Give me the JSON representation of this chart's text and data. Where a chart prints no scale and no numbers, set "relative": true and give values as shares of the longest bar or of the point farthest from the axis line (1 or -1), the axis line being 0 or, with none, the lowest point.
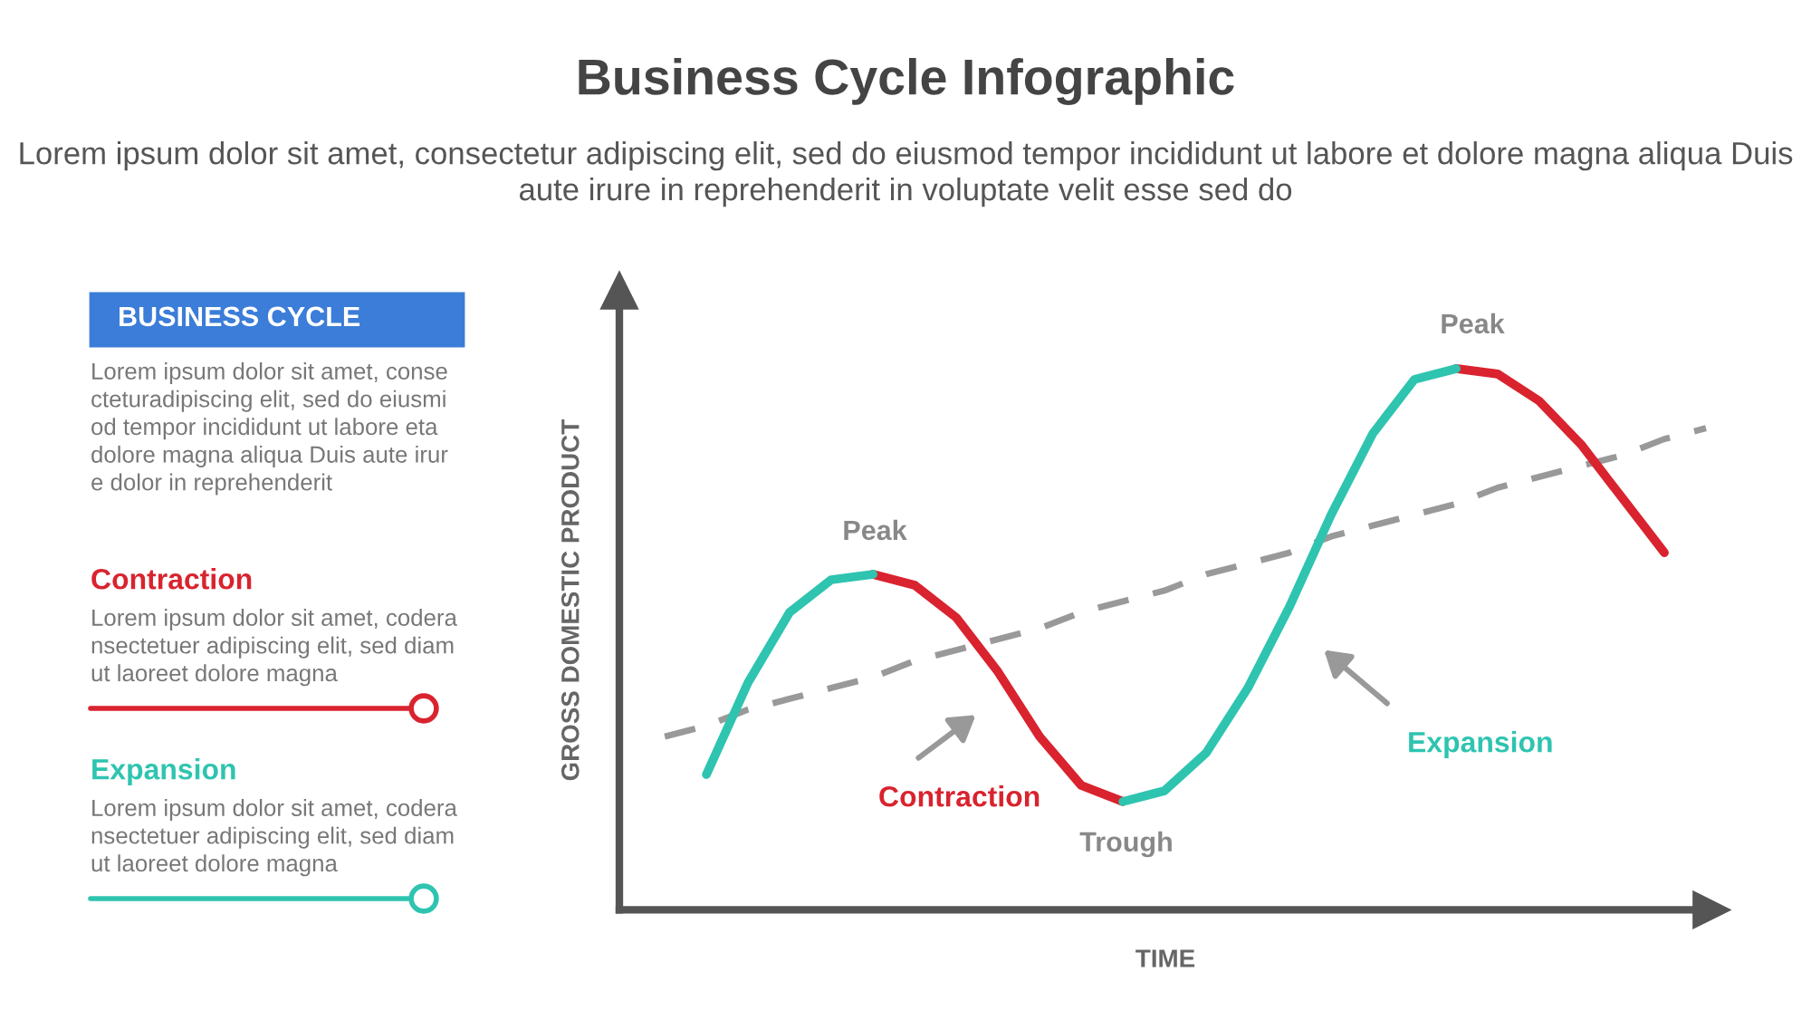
{
  "chart_data": {
    "type": "line",
    "relative": true,
    "title": "Business Cycle Infographic",
    "subtitle": "Lorem ipsum dolor sit amet, consectetur adipiscing elit, sed do eiusmod tempor incididunt ut labore et dolore magna aliqua Duis aute irure in reprehenderit in voluptate velit esse sed do",
    "xlabel": "TIME",
    "ylabel": "GROSS DOMESTIC PRODUCT",
    "categories": [
      null,
      null,
      null,
      null,
      null,
      null,
      null,
      null,
      null,
      null,
      null,
      null,
      null,
      null,
      null,
      null,
      null,
      null,
      null,
      null,
      null,
      null,
      null,
      null,
      null,
      null
    ],
    "series": [
      {
        "name": "Contraction",
        "color": "#d9232e",
        "values": [
          null,
          null,
          null,
          null,
          null,
          0.62,
          0.6,
          0.54,
          0.44,
          0.32,
          0.23,
          0.2,
          null,
          null,
          null,
          null,
          null,
          null,
          null,
          1.0,
          0.99,
          0.94,
          0.86,
          0.76,
          0.66,
          null
        ]
      },
      {
        "name": "Expansion",
        "color": "#2ec4b0",
        "values": [
          null,
          0.25,
          0.42,
          0.55,
          0.61,
          0.62,
          null,
          null,
          null,
          null,
          null,
          0.2,
          0.22,
          0.29,
          0.41,
          0.56,
          0.73,
          0.88,
          0.98,
          1.0,
          null,
          null,
          null,
          null,
          null,
          null
        ]
      },
      {
        "color": "#999999",
        "line_style": "dashed",
        "values": [
          0.32,
          0.34,
          0.37,
          0.39,
          0.41,
          0.43,
          0.46,
          0.48,
          0.5,
          0.52,
          0.55,
          0.57,
          0.59,
          0.62,
          0.64,
          0.66,
          0.69,
          0.71,
          0.73,
          0.75,
          0.78,
          0.8,
          0.82,
          0.84,
          0.87,
          0.89
        ]
      }
    ],
    "annotations": [
      "BUSINESS CYCLE",
      "Lorem ipsum dolor sit amet, conse\ncteturadipiscing elit, sed do eiusmi\nod tempor incididunt ut labore eta\ndolore magna aliqua Duis aute irur\ne dolor in reprehenderit",
      "Lorem ipsum dolor sit amet, codera\nnsectetuer adipiscing elit, sed diam\nut laoreet dolore magna",
      "Lorem ipsum dolor sit amet, codera\nnsectetuer adipiscing elit, sed diam\nut laoreet dolore magna",
      "Peak",
      "Trough",
      "Peak"
    ],
    "legend": "left",
    "grid": false
  }
}
